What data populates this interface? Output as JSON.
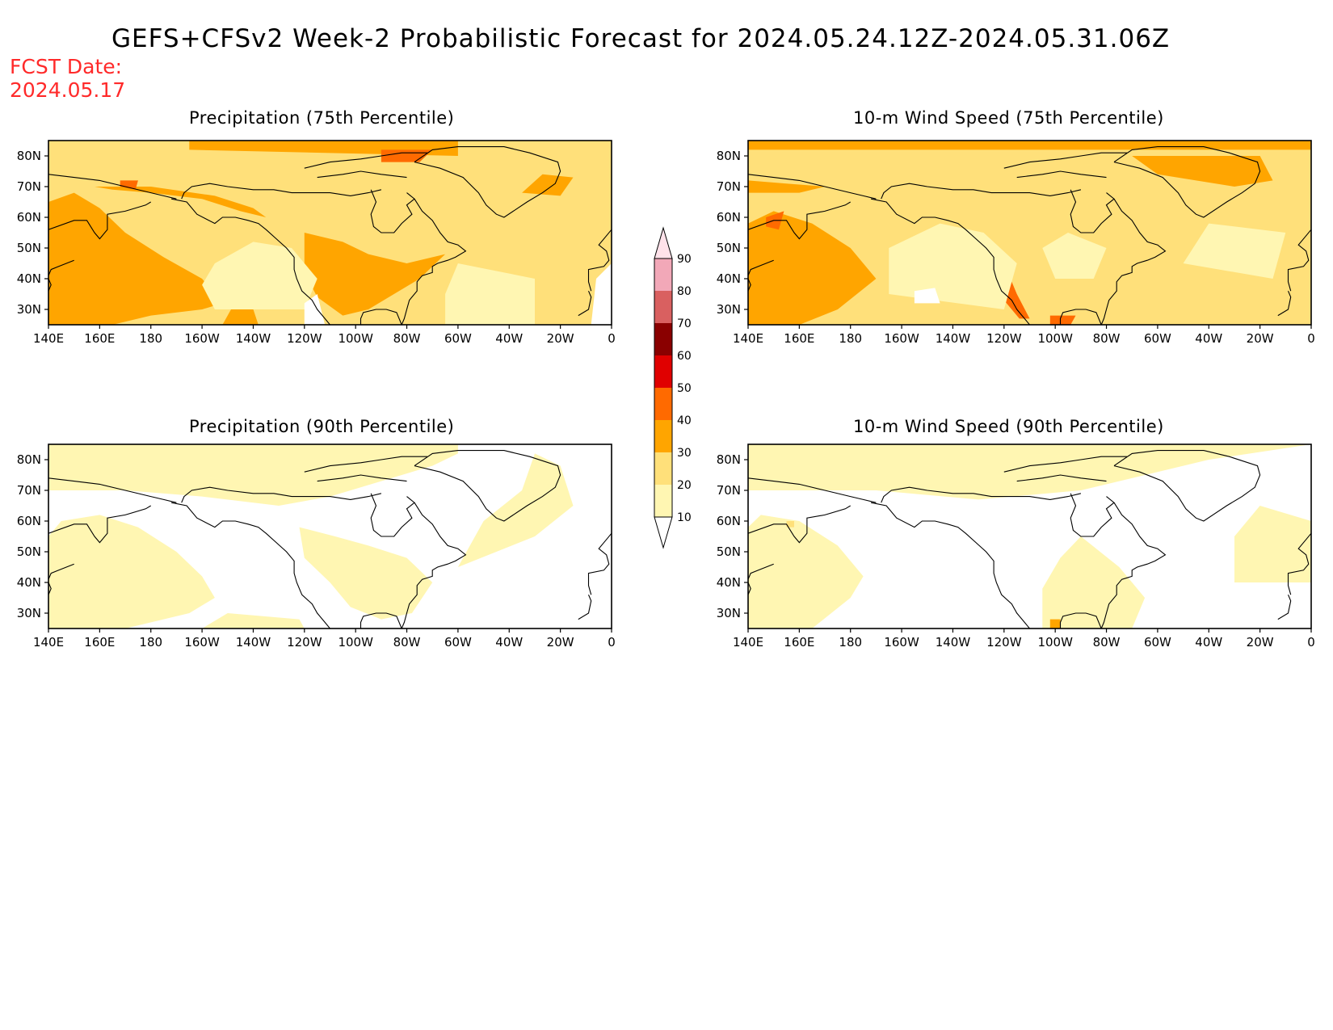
{
  "title": "GEFS+CFSv2 Week-2 Probabilistic Forecast for 2024.05.24.12Z-2024.05.31.06Z",
  "forecast_date": {
    "label": "FCST Date:",
    "value": "2024.05.17"
  },
  "axes": {
    "lon_labels": [
      "140E",
      "160E",
      "180",
      "160W",
      "140W",
      "120W",
      "100W",
      "80W",
      "60W",
      "40W",
      "20W",
      "0"
    ],
    "lat_labels": [
      "80N",
      "70N",
      "60N",
      "50N",
      "40N",
      "30N"
    ],
    "lon_range": [
      "140E",
      "0"
    ],
    "lat_range": [
      "25N",
      "85N"
    ]
  },
  "colorbar": {
    "levels": [
      10,
      20,
      30,
      40,
      50,
      60,
      70,
      80,
      90
    ],
    "colors": [
      "#ffffff",
      "#fff6b2",
      "#ffe07a",
      "#ffa500",
      "#ff6a00",
      "#e00000",
      "#8a0000",
      "#d96060",
      "#f2a8b8",
      "#ffe2ea"
    ]
  },
  "panels": [
    {
      "id": "precip75",
      "title": "Precipitation (75th Percentile)",
      "variable": "precipitation",
      "percentile": "75th"
    },
    {
      "id": "wind75",
      "title": "10-m Wind Speed (75th Percentile)",
      "variable": "10-m wind speed",
      "percentile": "75th"
    },
    {
      "id": "precip90",
      "title": "Precipitation (90th Percentile)",
      "variable": "precipitation",
      "percentile": "90th"
    },
    {
      "id": "wind90",
      "title": "10-m Wind Speed (90th Percentile)",
      "variable": "10-m wind speed",
      "percentile": "90th"
    }
  ]
}
